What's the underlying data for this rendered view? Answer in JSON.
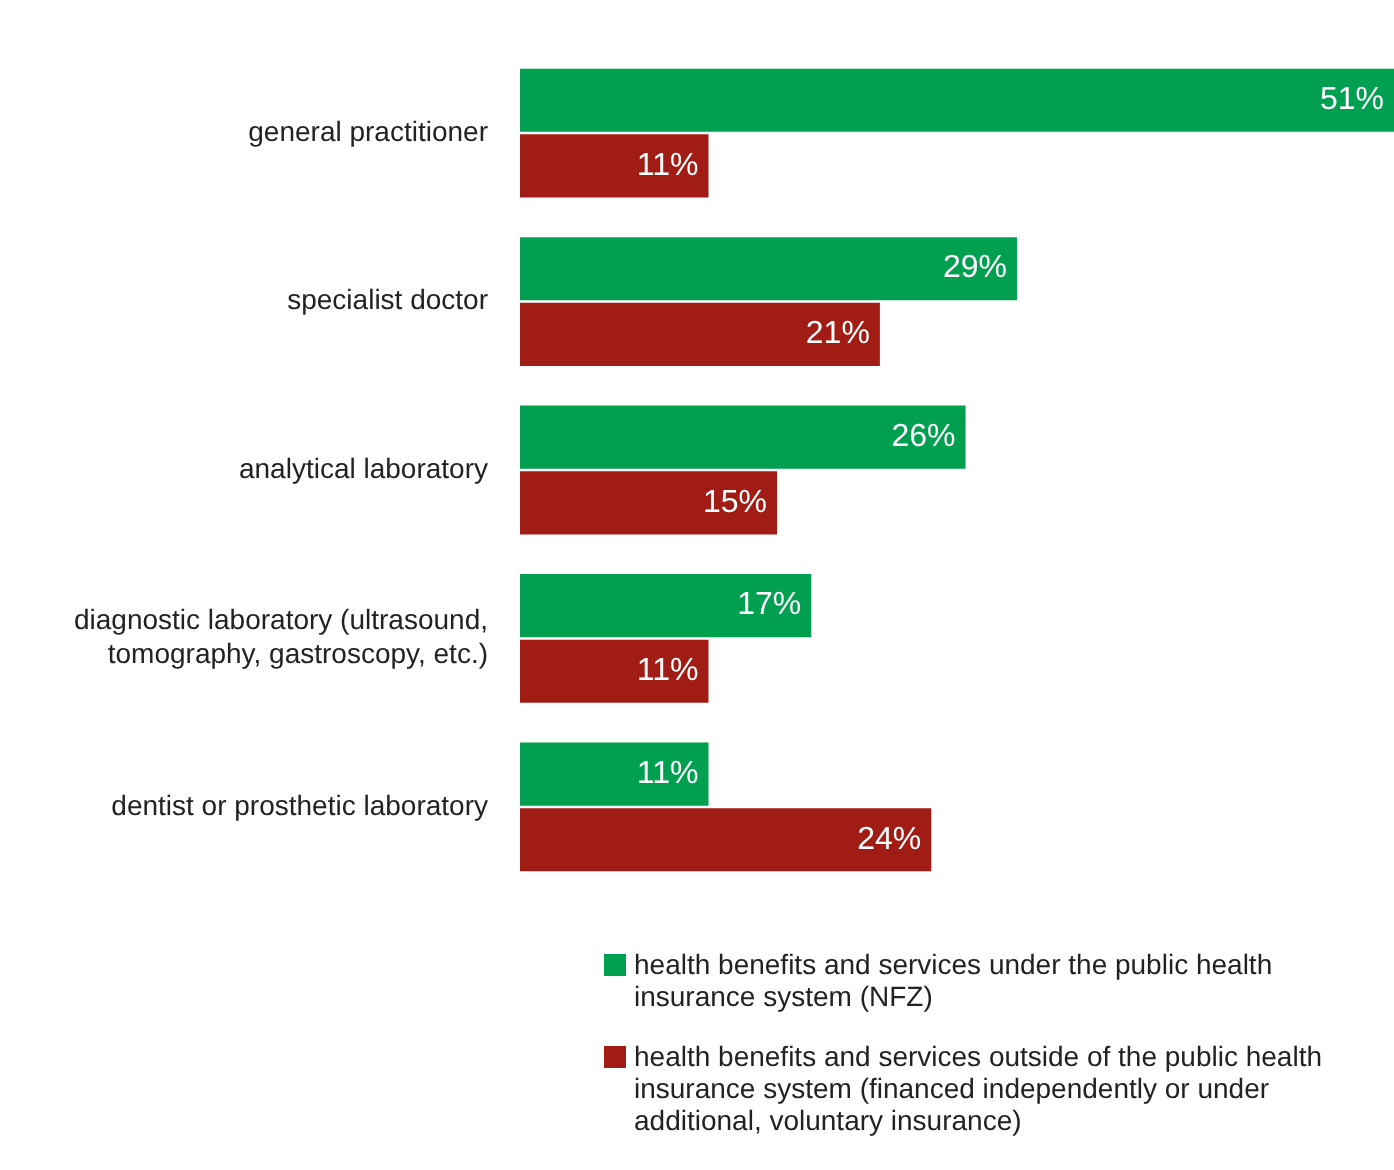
{
  "chart_data": {
    "type": "bar",
    "orientation": "horizontal",
    "categories": [
      "general practitioner",
      "specialist doctor",
      "analytical laboratory",
      "diagnostic laboratory (ultrasound, tomography, gastroscopy, etc.)",
      "dentist or prosthetic laboratory"
    ],
    "series": [
      {
        "name": "health benefits and services under the public health insurance system (NFZ)",
        "color": "#00a050",
        "values": [
          51,
          29,
          26,
          17,
          11
        ],
        "value_labels": [
          "51%",
          "29%",
          "26%",
          "17%",
          "11%"
        ]
      },
      {
        "name": "health benefits and services outside of the public health insurance system (financed independently or under additional, voluntary insurance)",
        "color": "#a01c14",
        "values": [
          11,
          21,
          15,
          11,
          24
        ],
        "value_labels": [
          "11%",
          "21%",
          "15%",
          "11%",
          "24%"
        ]
      }
    ],
    "legend": "bottom right",
    "grid": false
  }
}
